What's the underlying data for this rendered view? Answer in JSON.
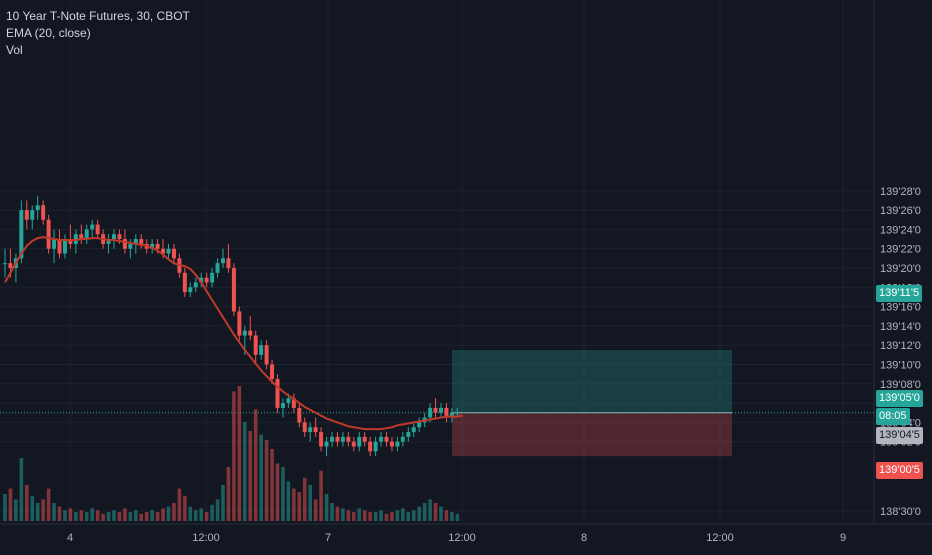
{
  "legend": {
    "symbol_line": "10 Year T-Note Futures, 30, CBOT",
    "ema_line": "EMA (20, close)",
    "vol_line": "Vol"
  },
  "colors": {
    "background": "#131722",
    "up": "#26a69a",
    "down": "#ef5350",
    "ema": "#c0392b",
    "target_zone": "#26a69a",
    "stop_zone": "#ef5350",
    "axis_text": "#b2b5be"
  },
  "price_labels": {
    "target": "139'11'5",
    "last": "139'05'0",
    "countdown": "08:05",
    "ema": "139'04'5",
    "stop": "139'00'5"
  },
  "chart_data": {
    "type": "candlestick",
    "title": "10 Year T-Note Futures, 30, CBOT",
    "y_unit": "price in 32nds",
    "ylim": [
      138.84,
      139.92
    ],
    "grid": true,
    "y_ticks": [
      "138'30'0",
      "139'02'0",
      "139'04'0",
      "139'06'0",
      "139'08'0",
      "139'10'0",
      "139'12'0",
      "139'14'0",
      "139'16'0",
      "139'18'0",
      "139'20'0",
      "139'22'0",
      "139'24'0",
      "139'26'0",
      "139'28'0"
    ],
    "x_ticks": [
      "4",
      "12:00",
      "7",
      "12:00",
      "8",
      "12:00",
      "9"
    ],
    "candles_ohlc_32nds": [
      [
        20.5,
        22,
        19,
        20.5
      ],
      [
        20.5,
        22,
        19,
        20
      ],
      [
        20,
        21.5,
        18.5,
        21
      ],
      [
        21,
        27,
        20.5,
        26
      ],
      [
        26,
        27,
        24,
        25
      ],
      [
        25,
        26.5,
        24,
        26
      ],
      [
        26,
        27.5,
        25,
        26.5
      ],
      [
        26.5,
        27,
        24.5,
        25
      ],
      [
        25,
        25.5,
        21.5,
        22
      ],
      [
        22,
        24,
        20.5,
        23
      ],
      [
        23,
        24,
        21,
        21.5
      ],
      [
        21.5,
        23.5,
        21,
        23
      ],
      [
        23,
        24.5,
        22,
        22.5
      ],
      [
        22.5,
        24,
        21.5,
        23.5
      ],
      [
        23.5,
        24.5,
        22.5,
        23
      ],
      [
        23,
        24.5,
        22.5,
        24
      ],
      [
        24,
        25,
        23,
        24.5
      ],
      [
        24.5,
        25,
        23,
        23.5
      ],
      [
        23.5,
        24,
        22,
        22.5
      ],
      [
        22.5,
        23.5,
        21.5,
        23
      ],
      [
        23,
        24,
        22,
        23.5
      ],
      [
        23.5,
        24,
        22.5,
        23
      ],
      [
        23,
        24,
        21.5,
        22
      ],
      [
        22,
        23,
        21,
        22.5
      ],
      [
        22.5,
        23.5,
        21.5,
        23
      ],
      [
        23,
        23.5,
        22,
        22.5
      ],
      [
        22.5,
        23,
        21.5,
        22
      ],
      [
        22,
        23,
        21.5,
        22.5
      ],
      [
        22.5,
        23,
        21.5,
        22
      ],
      [
        22,
        23,
        21,
        21.5
      ],
      [
        21.5,
        22.5,
        21,
        22
      ],
      [
        22,
        22.5,
        20.5,
        21
      ],
      [
        21,
        21.5,
        19,
        19.5
      ],
      [
        19.5,
        20,
        17,
        17.5
      ],
      [
        17.5,
        18.5,
        17,
        18
      ],
      [
        18,
        19,
        17.5,
        18.5
      ],
      [
        18.5,
        19.5,
        18,
        19
      ],
      [
        19,
        19.5,
        18,
        18.5
      ],
      [
        18.5,
        20,
        18,
        19.5
      ],
      [
        19.5,
        21,
        19,
        20.5
      ],
      [
        20.5,
        22,
        20,
        21
      ],
      [
        21,
        22.5,
        19.5,
        20
      ],
      [
        20,
        20.5,
        15,
        15.5
      ],
      [
        15.5,
        16,
        12.5,
        13
      ],
      [
        13,
        14,
        11,
        13.5
      ],
      [
        13.5,
        15,
        12.5,
        13
      ],
      [
        13,
        13.5,
        10,
        11
      ],
      [
        11,
        12.5,
        10.5,
        12
      ],
      [
        12,
        12.5,
        9.5,
        10
      ],
      [
        10,
        10.5,
        8,
        8.5
      ],
      [
        8.5,
        9,
        5,
        5.5
      ],
      [
        5.5,
        6.5,
        4.5,
        6
      ],
      [
        6,
        7,
        5.5,
        6.5
      ],
      [
        6.5,
        7,
        5,
        5.5
      ],
      [
        5.5,
        6,
        3.5,
        4
      ],
      [
        4,
        4.5,
        2.5,
        3
      ],
      [
        3,
        4,
        2,
        3.5
      ],
      [
        3.5,
        4.5,
        2.5,
        3
      ],
      [
        3,
        3.5,
        1,
        1.5
      ],
      [
        1.5,
        2.5,
        0.5,
        2
      ],
      [
        2,
        3,
        1.5,
        2.5
      ],
      [
        2.5,
        3,
        1.5,
        2
      ],
      [
        2,
        3,
        1.5,
        2.5
      ],
      [
        2.5,
        3,
        1.5,
        2
      ],
      [
        2,
        2.5,
        1,
        1.5
      ],
      [
        1.5,
        3,
        1,
        2.5
      ],
      [
        2.5,
        3,
        1.5,
        2
      ],
      [
        2,
        2.5,
        0.5,
        1
      ],
      [
        1,
        2.5,
        0.5,
        2
      ],
      [
        2,
        3,
        1.5,
        2.5
      ],
      [
        2.5,
        3,
        1.5,
        2
      ],
      [
        2,
        2.5,
        1,
        1.5
      ],
      [
        1.5,
        2.5,
        1,
        2
      ],
      [
        2,
        3,
        1.5,
        2.5
      ],
      [
        2.5,
        3.5,
        2,
        3
      ],
      [
        3,
        4,
        2.5,
        3.5
      ],
      [
        3.5,
        4.5,
        3,
        4
      ],
      [
        4,
        5,
        3.5,
        4.5
      ],
      [
        4.5,
        6,
        4,
        5.5
      ],
      [
        5.5,
        6.5,
        4.5,
        5
      ],
      [
        5,
        6,
        4.5,
        5.5
      ],
      [
        5.5,
        6,
        4,
        4.5
      ],
      [
        4.5,
        5.5,
        4,
        5
      ],
      [
        5,
        5.5,
        4.5,
        5
      ]
    ],
    "volume_relative": [
      0.15,
      0.18,
      0.12,
      0.35,
      0.2,
      0.14,
      0.1,
      0.12,
      0.18,
      0.1,
      0.08,
      0.06,
      0.07,
      0.05,
      0.06,
      0.05,
      0.07,
      0.06,
      0.04,
      0.05,
      0.06,
      0.05,
      0.07,
      0.05,
      0.06,
      0.04,
      0.05,
      0.06,
      0.05,
      0.07,
      0.08,
      0.1,
      0.18,
      0.14,
      0.08,
      0.06,
      0.07,
      0.05,
      0.09,
      0.12,
      0.2,
      0.3,
      0.72,
      0.75,
      0.55,
      0.5,
      0.62,
      0.48,
      0.45,
      0.4,
      0.32,
      0.3,
      0.22,
      0.18,
      0.16,
      0.24,
      0.2,
      0.12,
      0.28,
      0.15,
      0.1,
      0.08,
      0.07,
      0.06,
      0.05,
      0.07,
      0.06,
      0.05,
      0.05,
      0.06,
      0.04,
      0.05,
      0.06,
      0.07,
      0.05,
      0.06,
      0.08,
      0.1,
      0.12,
      0.1,
      0.08,
      0.06,
      0.05,
      0.04,
      0.03
    ],
    "ema_20": [
      18.5,
      19.5,
      20.5,
      21.5,
      22.3,
      22.8,
      23.1,
      23.2,
      23.1,
      23.0,
      22.9,
      22.9,
      22.9,
      22.9,
      23.0,
      23.0,
      23.1,
      23.1,
      23.0,
      22.9,
      22.9,
      22.8,
      22.7,
      22.6,
      22.5,
      22.4,
      22.3,
      22.1,
      21.8,
      21.4,
      20.9,
      20.5,
      20.3,
      20.2,
      19.9,
      19.3,
      18.5,
      17.6,
      16.7,
      15.8,
      14.9,
      14.0,
      13.1,
      12.3,
      11.5,
      10.8,
      10.1,
      9.4,
      8.8,
      8.2,
      7.7,
      7.2,
      6.8,
      6.4,
      6.0,
      5.6,
      5.3,
      5.0,
      4.7,
      4.4,
      4.2,
      4.0,
      3.8,
      3.6,
      3.5,
      3.4,
      3.3,
      3.3,
      3.3,
      3.3,
      3.4,
      3.5,
      3.7,
      3.8,
      3.9,
      4.0,
      4.1,
      4.2,
      4.3,
      4.4,
      4.5,
      4.6,
      4.6,
      4.6,
      4.7
    ],
    "position_tool": {
      "entry": "139'05'0",
      "target": "139'11'5",
      "stop": "139'00'5"
    }
  }
}
